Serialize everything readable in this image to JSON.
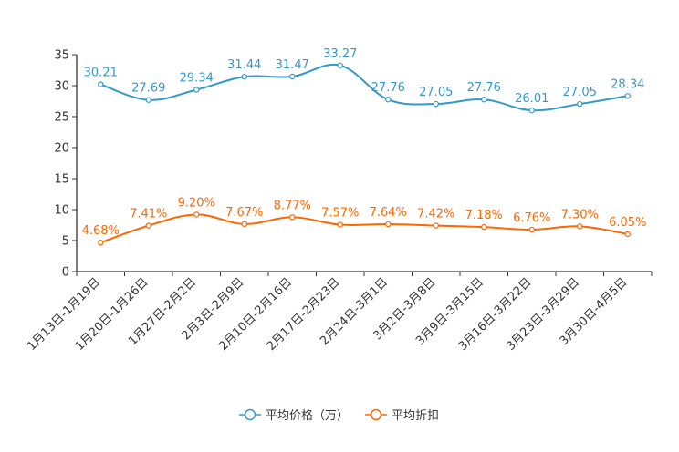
{
  "chart_data": {
    "type": "line",
    "title": "",
    "xlabel": "",
    "ylabel": "",
    "ylim": [
      0,
      35
    ],
    "yticks": [
      0,
      5,
      10,
      15,
      20,
      25,
      30,
      35
    ],
    "grid": false,
    "legend_position": "bottom-center",
    "categories": [
      "1月13日-1月19日",
      "1月20日-1月26日",
      "1月27日-2月2日",
      "2月3日-2月9日",
      "2月10日-2月16日",
      "2月17日-2月23日",
      "2月24日-3月1日",
      "3月2日-3月8日",
      "3月9日-3月15日",
      "3月16日-3月22日",
      "3月23日-3月29日",
      "3月30日-4月5日"
    ],
    "series": [
      {
        "name": "平均价格（万）",
        "color": "#3399cc",
        "values": [
          30.21,
          27.69,
          29.34,
          31.44,
          31.47,
          33.27,
          27.76,
          27.05,
          27.76,
          26.01,
          27.05,
          28.34
        ],
        "labels": [
          "30.21",
          "27.69",
          "29.34",
          "31.44",
          "31.47",
          "33.27",
          "27.76",
          "27.05",
          "27.76",
          "26.01",
          "27.05",
          "28.34"
        ]
      },
      {
        "name": "平均折扣",
        "color": "#ff6600",
        "values": [
          4.68,
          7.41,
          9.2,
          7.67,
          8.77,
          7.57,
          7.64,
          7.42,
          7.18,
          6.76,
          7.3,
          6.05
        ],
        "labels": [
          "4.68%",
          "7.41%",
          "9.20%",
          "7.67%",
          "8.77%",
          "7.57%",
          "7.64%",
          "7.42%",
          "7.18%",
          "6.76%",
          "7.30%",
          "6.05%"
        ]
      }
    ]
  }
}
